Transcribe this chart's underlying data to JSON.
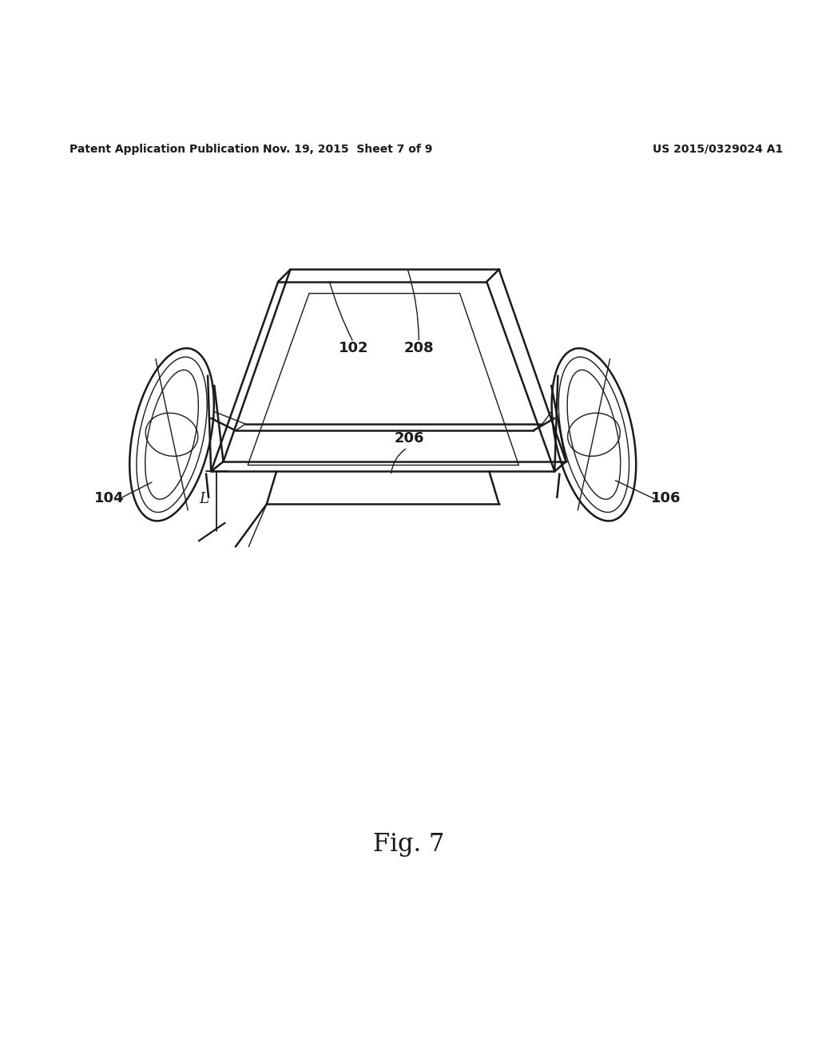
{
  "header_left": "Patent Application Publication",
  "header_mid": "Nov. 19, 2015  Sheet 7 of 9",
  "header_right": "US 2015/0329024 A1",
  "fig_label": "Fig. 7",
  "bg_color": "#ffffff",
  "line_color": "#1a1a1a",
  "text_color": "#1a1a1a",
  "header_fontsize": 10,
  "fig_label_fontsize": 22,
  "label_fontsize": 13
}
